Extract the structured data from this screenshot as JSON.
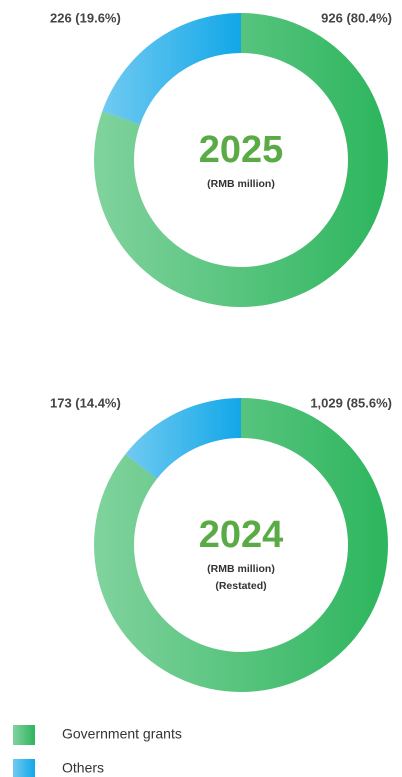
{
  "chart_data": [
    {
      "type": "pie",
      "donut": true,
      "title": "2025",
      "subtitle": [
        "(RMB million)"
      ],
      "values": [
        926,
        226
      ],
      "value_labels": [
        "926 (80.4%)",
        "226 (19.6%)"
      ],
      "colors": [
        "#2db55d",
        "#12a7e8"
      ]
    },
    {
      "type": "pie",
      "donut": true,
      "title": "2024",
      "subtitle": [
        "(RMB million)",
        "(Restated)"
      ],
      "values": [
        1029,
        173
      ],
      "value_labels": [
        "1,029 (85.6%)",
        "173 (14.4%)"
      ],
      "colors": [
        "#2db55d",
        "#12a7e8"
      ]
    }
  ],
  "legend": {
    "items": [
      {
        "name": "Government grants",
        "color": "#2db55d"
      },
      {
        "name": "Others",
        "color": "#12a7e8"
      }
    ]
  }
}
